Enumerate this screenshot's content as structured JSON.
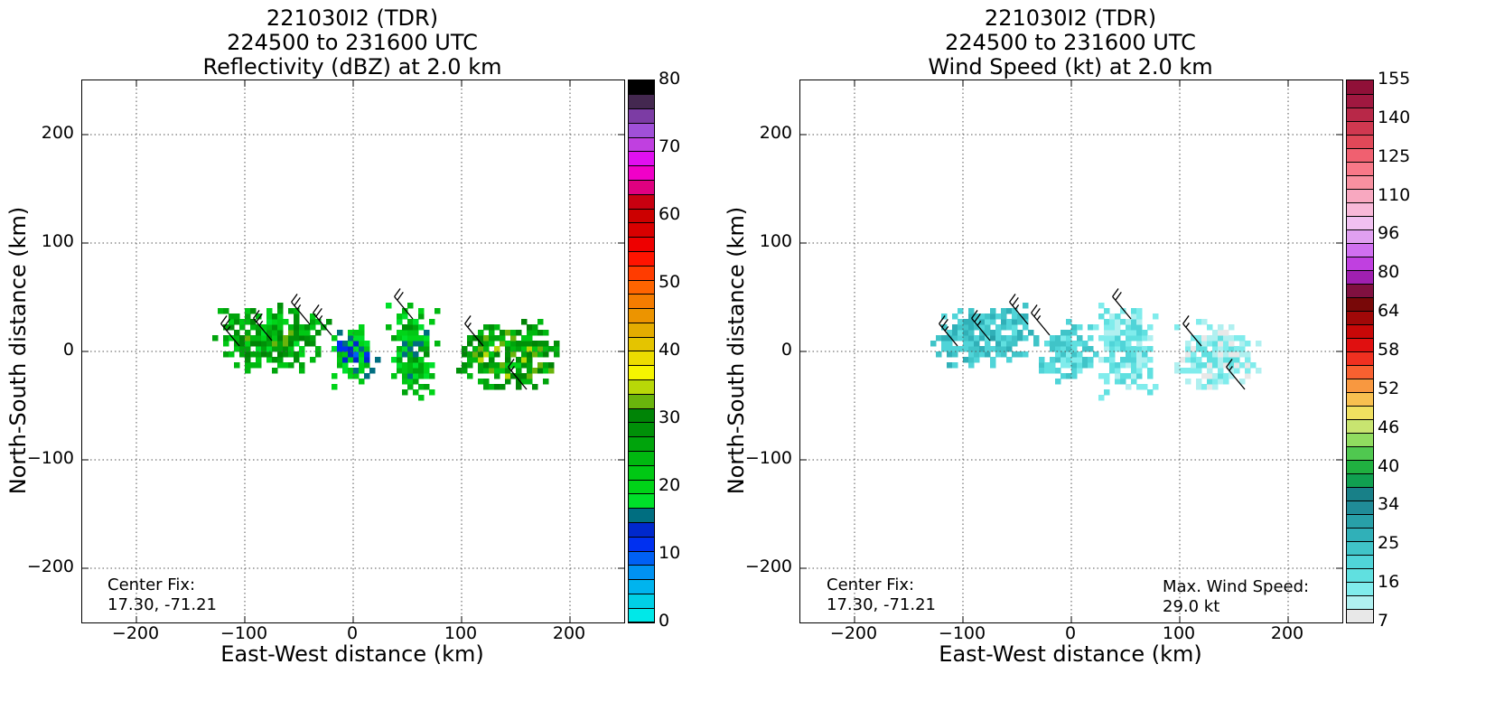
{
  "panels": {
    "left": {
      "title_line1": "221030I2 (TDR)",
      "title_line2": "224500 to 231600 UTC",
      "title_line3": "Reflectivity (dBZ) at 2.0 km",
      "xlabel": "East-West distance (km)",
      "ylabel": "North-South distance (km)",
      "center_fix_label": "Center Fix:",
      "center_fix_value": "17.30, -71.21",
      "colorbar_ticks": [
        "80",
        "70",
        "60",
        "50",
        "40",
        "30",
        "20",
        "10",
        "0"
      ],
      "colorbar_colors": [
        "#00e8e8",
        "#00d0e6",
        "#00b4ee",
        "#0092f2",
        "#0060f4",
        "#0030f0",
        "#0028cc",
        "#006e80",
        "#00e02a",
        "#00d418",
        "#00c814",
        "#00b810",
        "#00a40c",
        "#009008",
        "#008406",
        "#6ab40c",
        "#b8d808",
        "#f6f400",
        "#ecdc00",
        "#e4c400",
        "#e4ac00",
        "#ec9400",
        "#f47c00",
        "#ff6400",
        "#ff3c00",
        "#ff1400",
        "#ee0000",
        "#d80000",
        "#cc0000",
        "#c80010",
        "#e00080",
        "#f000c8",
        "#e010f0",
        "#c040e0",
        "#a050d8",
        "#7c3ca4",
        "#442850",
        "#000000"
      ]
    },
    "right": {
      "title_line1": "221030I2 (TDR)",
      "title_line2": "224500 to 231600 UTC",
      "title_line3": "Wind Speed (kt) at 2.0 km",
      "xlabel": "East-West distance (km)",
      "ylabel": "North-South distance (km)",
      "center_fix_label": "Center Fix:",
      "center_fix_value": "17.30, -71.21",
      "max_wind_label": "Max. Wind Speed:",
      "max_wind_value": "29.0 kt",
      "colorbar_ticks": [
        "155",
        "140",
        "125",
        "110",
        "96",
        "80",
        "64",
        "58",
        "52",
        "46",
        "40",
        "34",
        "25",
        "16",
        "7"
      ],
      "colorbar_colors": [
        "#e8e8e8",
        "#b0f0f0",
        "#80ecec",
        "#60e0e0",
        "#50d4d8",
        "#40c4c8",
        "#30b0b8",
        "#28a0a8",
        "#208c98",
        "#188088",
        "#10a050",
        "#20b040",
        "#50c850",
        "#90dc60",
        "#c8e470",
        "#f0e060",
        "#f8c050",
        "#f89840",
        "#f86030",
        "#f03020",
        "#e01010",
        "#c80808",
        "#a00808",
        "#780808",
        "#801040",
        "#a020b0",
        "#c040e0",
        "#d070f0",
        "#e0a0f0",
        "#f0c0f0",
        "#f8b8d8",
        "#f8a8c0",
        "#f890a0",
        "#f87888",
        "#f06070",
        "#e04858",
        "#d03850",
        "#b82848",
        "#a01840",
        "#901038"
      ]
    }
  },
  "chart_data": [
    {
      "type": "heatmap",
      "title": "221030I2 (TDR) 224500 to 231600 UTC Reflectivity (dBZ) at 2.0 km",
      "xlabel": "East-West distance (km)",
      "ylabel": "North-South distance (km)",
      "xlim": [
        -250,
        250
      ],
      "ylim": [
        -250,
        250
      ],
      "xticks": [
        -200,
        -100,
        0,
        100,
        200
      ],
      "yticks": [
        -200,
        -100,
        0,
        100,
        200
      ],
      "grid": true,
      "colorbar_range": [
        0,
        80
      ],
      "echo_regions": [
        {
          "x": [
            -130,
            -25
          ],
          "y": [
            -20,
            40
          ],
          "value": 25
        },
        {
          "x": [
            -25,
            20
          ],
          "y": [
            -35,
            25
          ],
          "value": 18
        },
        {
          "x": [
            30,
            75
          ],
          "y": [
            -45,
            40
          ],
          "value": 22
        },
        {
          "x": [
            95,
            190
          ],
          "y": [
            -40,
            25
          ],
          "value": 28
        }
      ],
      "barb_sample": [
        {
          "x": -105,
          "y": 5,
          "kt": 25
        },
        {
          "x": -75,
          "y": 10,
          "kt": 25
        },
        {
          "x": -40,
          "y": 25,
          "kt": 25
        },
        {
          "x": -20,
          "y": 15,
          "kt": 25
        },
        {
          "x": 55,
          "y": 30,
          "kt": 20
        },
        {
          "x": 120,
          "y": 5,
          "kt": 15
        },
        {
          "x": 160,
          "y": -35,
          "kt": 15
        }
      ]
    },
    {
      "type": "heatmap",
      "title": "221030I2 (TDR) 224500 to 231600 UTC Wind Speed (kt) at 2.0 km",
      "xlabel": "East-West distance (km)",
      "ylabel": "North-South distance (km)",
      "xlim": [
        -250,
        250
      ],
      "ylim": [
        -250,
        250
      ],
      "xticks": [
        -200,
        -100,
        0,
        100,
        200
      ],
      "yticks": [
        -200,
        -100,
        0,
        100,
        200
      ],
      "grid": true,
      "colorbar_range": [
        7,
        160
      ],
      "max_wind_kt": 29.0,
      "wind_regions": [
        {
          "x": [
            -130,
            -30
          ],
          "y": [
            -15,
            40
          ],
          "value": 27
        },
        {
          "x": [
            -30,
            20
          ],
          "y": [
            -30,
            25
          ],
          "value": 23
        },
        {
          "x": [
            20,
            75
          ],
          "y": [
            -45,
            40
          ],
          "value": 18
        },
        {
          "x": [
            95,
            170
          ],
          "y": [
            -40,
            25
          ],
          "value": 14
        }
      ],
      "barb_sample": [
        {
          "x": -105,
          "y": 5,
          "kt": 25
        },
        {
          "x": -75,
          "y": 10,
          "kt": 25
        },
        {
          "x": -40,
          "y": 25,
          "kt": 25
        },
        {
          "x": -20,
          "y": 15,
          "kt": 25
        },
        {
          "x": 55,
          "y": 30,
          "kt": 20
        },
        {
          "x": 120,
          "y": 5,
          "kt": 15
        },
        {
          "x": 160,
          "y": -35,
          "kt": 15
        }
      ]
    }
  ]
}
